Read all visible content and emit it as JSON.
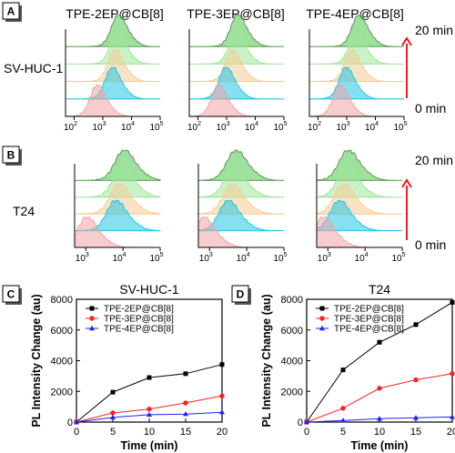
{
  "colors": {
    "red": "#f0a4a4",
    "cyan": "#22c7e6",
    "peach": "#f6cc96",
    "light_green": "#9fe69a",
    "green": "#4cc94c",
    "dark_green": "#6a8f5c",
    "arrow": "#ff0000",
    "black_series": "#000000",
    "red_series": "#ff2020",
    "blue_series": "#2020ff"
  },
  "panels": {
    "A": {
      "label": "A",
      "row_label": "SV-HUC-1"
    },
    "B": {
      "label": "B",
      "row_label": "T24"
    },
    "C": {
      "label": "C"
    },
    "D": {
      "label": "D"
    }
  },
  "column_titles": [
    "TPE-2EP@CB[8]",
    "TPE-3EP@CB[8]",
    "TPE-4EP@CB[8]"
  ],
  "flow_axis_ticks": [
    {
      "base": "10",
      "exp": "2"
    },
    {
      "base": "10",
      "exp": "3"
    },
    {
      "base": "10",
      "exp": "4"
    },
    {
      "base": "10",
      "exp": "5"
    }
  ],
  "time_arrow": {
    "top": "20 min",
    "bottom": "0 min"
  },
  "legend": [
    "TPE-2EP@CB[8]",
    "TPE-3EP@CB[8]",
    "TPE-4EP@CB[8]"
  ],
  "chart_data": [
    {
      "type": "histogram-stack",
      "panel": "A",
      "row": "SV-HUC-1",
      "x_scale": "log",
      "xlim": [
        50,
        100000
      ],
      "layers": [
        "0 min",
        "5 min",
        "10 min",
        "15 min",
        "20 min"
      ],
      "series": [
        {
          "name": "TPE-2EP@CB[8]",
          "peak_x": [
            600,
            2000,
            2500,
            3000,
            3300
          ]
        },
        {
          "name": "TPE-3EP@CB[8]",
          "peak_x": [
            500,
            900,
            1500,
            2000,
            2300
          ]
        },
        {
          "name": "TPE-4EP@CB[8]",
          "peak_x": [
            550,
            900,
            1400,
            2000,
            2500
          ]
        }
      ]
    },
    {
      "type": "histogram-stack",
      "panel": "B",
      "row": "T24",
      "x_scale": "log",
      "xlim": [
        500,
        100000
      ],
      "layers": [
        "0 min",
        "5 min",
        "10 min",
        "15 min",
        "20 min"
      ],
      "series": [
        {
          "name": "TPE-2EP@CB[8]",
          "peak_x": [
            1000,
            6000,
            7500,
            9000,
            10000
          ]
        },
        {
          "name": "TPE-3EP@CB[8]",
          "peak_x": [
            650,
            3000,
            3800,
            4200,
            4800
          ]
        },
        {
          "name": "TPE-4EP@CB[8]",
          "peak_x": [
            700,
            1900,
            2500,
            3000,
            3300
          ]
        }
      ]
    },
    {
      "type": "line",
      "panel": "C",
      "title": "SV-HUC-1",
      "xlabel": "Time (min)",
      "ylabel": "PL Intensity Change (au)",
      "x": [
        0,
        5,
        10,
        15,
        20
      ],
      "xlim": [
        0,
        20
      ],
      "ylim": [
        0,
        8000
      ],
      "xticks": [
        0,
        5,
        10,
        15,
        20
      ],
      "yticks": [
        0,
        2000,
        4000,
        6000,
        8000
      ],
      "legend_position": "top-left",
      "series": [
        {
          "name": "TPE-2EP@CB[8]",
          "values": [
            0,
            1950,
            2900,
            3150,
            3750
          ]
        },
        {
          "name": "TPE-3EP@CB[8]",
          "values": [
            0,
            600,
            850,
            1250,
            1700
          ]
        },
        {
          "name": "TPE-4EP@CB[8]",
          "values": [
            0,
            300,
            480,
            520,
            640
          ]
        }
      ]
    },
    {
      "type": "line",
      "panel": "D",
      "title": "T24",
      "xlabel": "Time (min)",
      "ylabel": "PL Intensity Change (au)",
      "x": [
        0,
        5,
        10,
        15,
        20
      ],
      "xlim": [
        0,
        20
      ],
      "ylim": [
        0,
        8000
      ],
      "xticks": [
        0,
        5,
        10,
        15,
        20
      ],
      "yticks": [
        0,
        2000,
        4000,
        6000,
        8000
      ],
      "legend_position": "top-left",
      "series": [
        {
          "name": "TPE-2EP@CB[8]",
          "values": [
            0,
            3400,
            5200,
            6350,
            7800
          ]
        },
        {
          "name": "TPE-3EP@CB[8]",
          "values": [
            0,
            900,
            2200,
            2750,
            3150
          ]
        },
        {
          "name": "TPE-4EP@CB[8]",
          "values": [
            0,
            100,
            220,
            280,
            330
          ]
        }
      ]
    }
  ]
}
